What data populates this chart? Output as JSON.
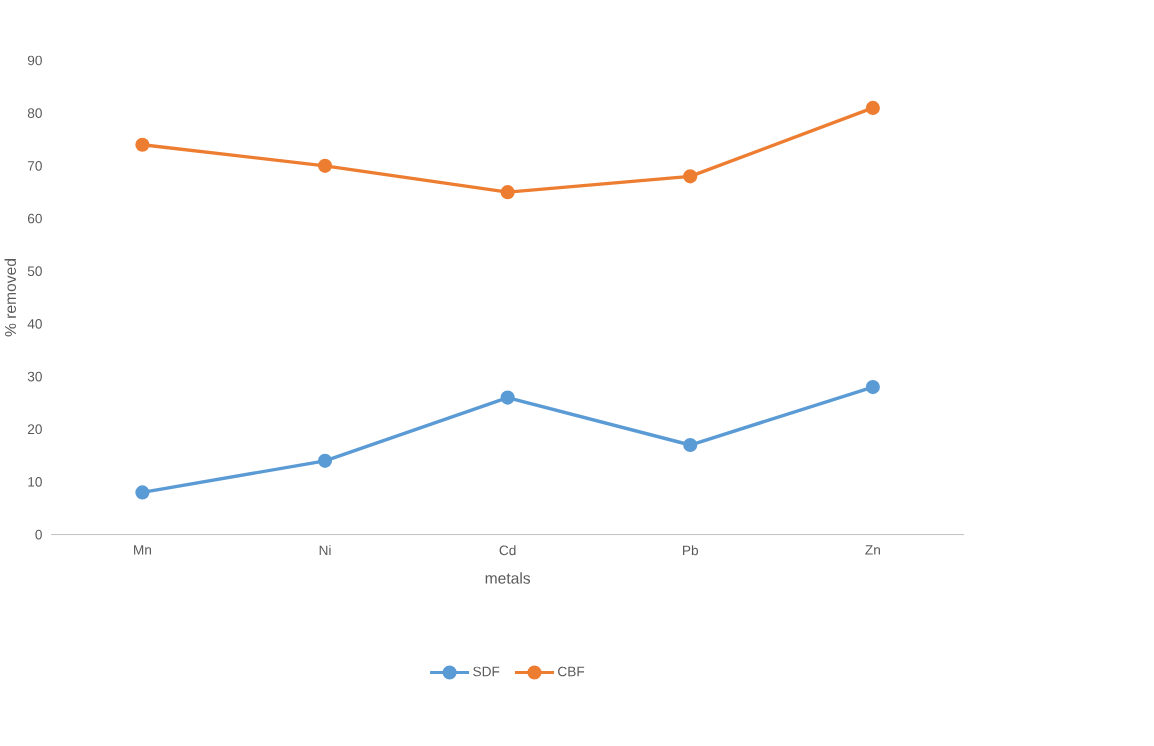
{
  "chart_data": {
    "type": "line",
    "xlabel": "metals",
    "ylabel": "% removed",
    "categories": [
      "Mn",
      "Ni",
      "Cd",
      "Pb",
      "Zn"
    ],
    "series": [
      {
        "name": "SDF",
        "color": "#5b9bd5",
        "values": [
          8,
          14,
          26,
          17,
          28
        ]
      },
      {
        "name": "CBF",
        "color": "#ed7d31",
        "values": [
          74,
          70,
          65,
          68,
          81
        ]
      }
    ],
    "ylim": [
      0,
      90
    ],
    "yticks": [
      0,
      10,
      20,
      30,
      40,
      50,
      60,
      70,
      80,
      90
    ],
    "legend": "bottom",
    "marker": "circle",
    "line_style": "solid"
  }
}
